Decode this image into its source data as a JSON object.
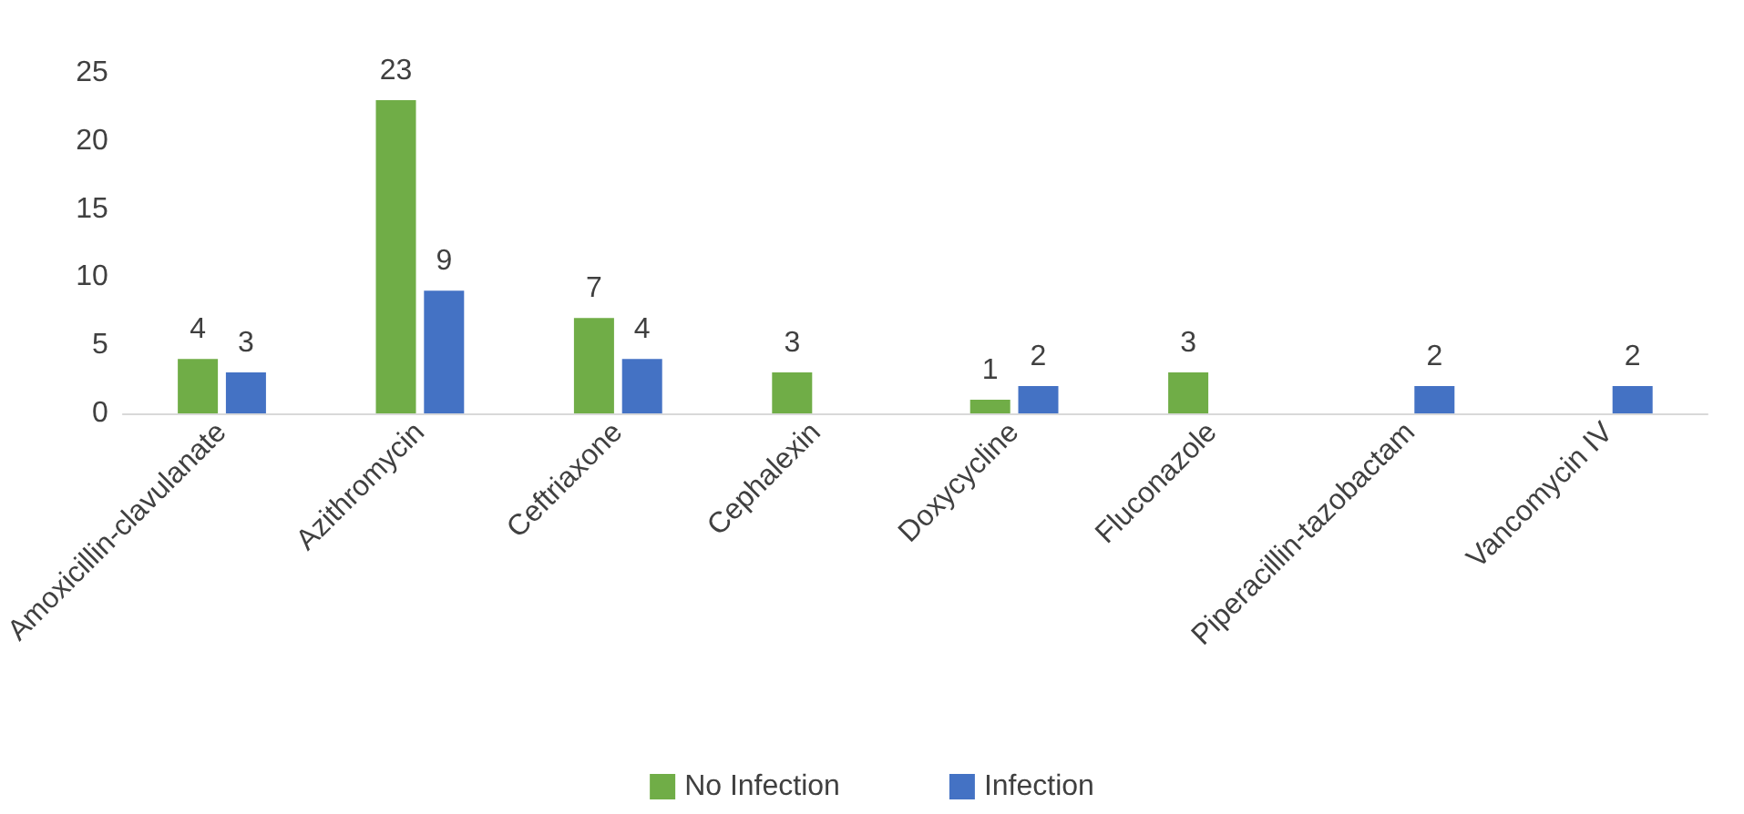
{
  "chart_data": {
    "type": "bar",
    "categories": [
      "Amoxicillin-clavulanate",
      "Azithromycin",
      "Ceftriaxone",
      "Cephalexin",
      "Doxycycline",
      "Fluconazole",
      "Piperacillin-tazobactam",
      "Vancomycin IV"
    ],
    "series": [
      {
        "name": "No Infection",
        "color": "#70ad47",
        "values": [
          4,
          23,
          7,
          3,
          1,
          3,
          null,
          null
        ]
      },
      {
        "name": "Infection",
        "color": "#4472c4",
        "values": [
          3,
          9,
          4,
          null,
          2,
          null,
          2,
          2
        ]
      }
    ],
    "ylim": [
      0,
      25
    ],
    "yticks": [
      0,
      5,
      10,
      15,
      20,
      25
    ],
    "grid": false,
    "legend": "bottom",
    "data_labels": true
  }
}
